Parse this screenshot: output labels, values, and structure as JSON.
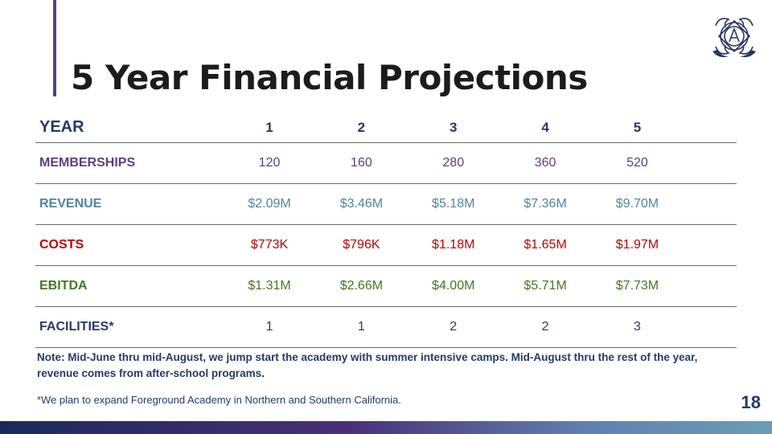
{
  "slide": {
    "title": "5 Year Financial Projections",
    "page_number": "18",
    "logo_icon": "academy-crest-icon"
  },
  "table": {
    "header": {
      "label": "YEAR",
      "years": [
        "1",
        "2",
        "3",
        "4",
        "5"
      ]
    },
    "rows": [
      {
        "label": "MEMBERSHIPS",
        "values": [
          "120",
          "160",
          "280",
          "360",
          "520"
        ],
        "color": "#5b3f86"
      },
      {
        "label": "REVENUE",
        "values": [
          "$2.09M",
          "$3.46M",
          "$5.18M",
          "$7.36M",
          "$9.70M"
        ],
        "color": "#4e86a4"
      },
      {
        "label": "COSTS",
        "values": [
          "$773K",
          "$796K",
          "$1.18M",
          "$1.65M",
          "$1.97M"
        ],
        "color": "#c40000"
      },
      {
        "label": "EBITDA",
        "values": [
          "$1.31M",
          "$2.66M",
          "$4.00M",
          "$5.71M",
          "$7.73M"
        ],
        "color": "#3f7a20"
      },
      {
        "label": "FACILITIES*",
        "values": [
          "1",
          "1",
          "2",
          "2",
          "3"
        ],
        "color": "#243a6b"
      }
    ]
  },
  "note": "Note: Mid-June thru mid-August, we jump start the academy with summer intensive camps. Mid-August thru the rest of the year, revenue comes from after-school programs.",
  "footnote": "*We plan to expand Foreground Academy in Northern and Southern California.",
  "colors": {
    "accent": "#5b3f86",
    "navy": "#243a6b"
  }
}
